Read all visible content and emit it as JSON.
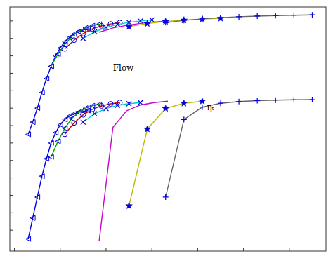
{
  "chart_data": {
    "type": "line",
    "xlim": [
      -0.01,
      0.68
    ],
    "ylim": [
      -0.62,
      0.78
    ],
    "xticks": [
      0.0,
      0.1,
      0.2,
      0.3,
      0.4,
      0.5,
      0.6
    ],
    "yticks": [
      -0.5,
      -0.4,
      -0.3,
      -0.2,
      -0.1,
      0.0,
      0.1,
      0.2,
      0.3,
      0.4,
      0.5,
      0.6,
      0.7
    ],
    "tick_labels": false,
    "grid": false,
    "annotations": [
      {
        "text": "Flow",
        "x": 0.215,
        "y": 0.415
      },
      {
        "text": "ηₜ",
        "x": 0.42,
        "y": 0.19
      }
    ],
    "series": [
      {
        "color": "#0000dd",
        "marker": "triangle-left",
        "x": [
          0.03,
          0.04,
          0.05,
          0.06,
          0.07,
          0.08,
          0.09,
          0.1,
          0.11,
          0.12,
          0.13,
          0.14,
          0.15,
          0.16
        ],
        "values": [
          0.05,
          0.12,
          0.2,
          0.29,
          0.37,
          0.44,
          0.5,
          0.545,
          0.58,
          0.605,
          0.625,
          0.638,
          0.648,
          0.655
        ]
      },
      {
        "color": "#00aa00",
        "marker": "triangle-left",
        "x": [
          0.08,
          0.095,
          0.11,
          0.125,
          0.14,
          0.155,
          0.17,
          0.185
        ],
        "values": [
          0.44,
          0.51,
          0.565,
          0.61,
          0.64,
          0.66,
          0.673,
          0.682
        ]
      },
      {
        "color": "#dd0000",
        "marker": "circle",
        "x": [
          0.11,
          0.13,
          0.15,
          0.17,
          0.19,
          0.21,
          0.23
        ],
        "values": [
          0.54,
          0.59,
          0.628,
          0.655,
          0.672,
          0.683,
          0.69
        ]
      },
      {
        "color": "#00cccc",
        "marker": "x",
        "x": [
          0.15,
          0.175,
          0.2,
          0.225,
          0.25,
          0.275,
          0.3
        ],
        "values": [
          0.6,
          0.638,
          0.663,
          0.68,
          0.692,
          0.7,
          0.706
        ]
      },
      {
        "color": "#cc00cc",
        "marker": "none",
        "x": [
          0.185,
          0.215,
          0.245,
          0.275,
          0.305,
          0.335
        ],
        "values": [
          0.635,
          0.66,
          0.675,
          0.686,
          0.694,
          0.7
        ]
      },
      {
        "color": "#bbbb00",
        "marker": "star",
        "x": [
          0.25,
          0.29,
          0.33,
          0.37,
          0.41,
          0.45
        ],
        "values": [
          0.668,
          0.685,
          0.697,
          0.705,
          0.711,
          0.715
        ]
      },
      {
        "color": "#666666",
        "marker": "plus",
        "x": [
          0.33,
          0.37,
          0.41,
          0.45,
          0.49,
          0.53,
          0.57,
          0.61,
          0.65
        ],
        "values": [
          0.69,
          0.703,
          0.712,
          0.719,
          0.724,
          0.728,
          0.731,
          0.733,
          0.735
        ]
      },
      {
        "color": "#0000dd",
        "marker": "triangle-left",
        "x": [
          0.03,
          0.04,
          0.05,
          0.06,
          0.07,
          0.08,
          0.09,
          0.1,
          0.11,
          0.12,
          0.13,
          0.14,
          0.15,
          0.16
        ],
        "values": [
          -0.55,
          -0.43,
          -0.31,
          -0.19,
          -0.09,
          0.0,
          0.06,
          0.105,
          0.135,
          0.155,
          0.168,
          0.176,
          0.182,
          0.186
        ]
      },
      {
        "color": "#00aa00",
        "marker": "triangle-left",
        "x": [
          0.08,
          0.095,
          0.11,
          0.125,
          0.14,
          0.155,
          0.17,
          0.185
        ],
        "values": [
          -0.08,
          0.01,
          0.085,
          0.14,
          0.177,
          0.2,
          0.214,
          0.222
        ]
      },
      {
        "color": "#dd0000",
        "marker": "circle",
        "x": [
          0.11,
          0.13,
          0.15,
          0.17,
          0.19,
          0.21,
          0.23
        ],
        "values": [
          0.05,
          0.115,
          0.162,
          0.193,
          0.213,
          0.225,
          0.232
        ]
      },
      {
        "color": "#00cccc",
        "marker": "x",
        "x": [
          0.15,
          0.175,
          0.2,
          0.225,
          0.25,
          0.275
        ],
        "values": [
          0.12,
          0.168,
          0.198,
          0.216,
          0.226,
          0.232
        ]
      },
      {
        "color": "#cc00cc",
        "marker": "none",
        "x": [
          0.185,
          0.215,
          0.245,
          0.275,
          0.305,
          0.335
        ],
        "values": [
          -0.56,
          0.09,
          0.185,
          0.218,
          0.232,
          0.24
        ]
      },
      {
        "color": "#bbbb00",
        "marker": "star",
        "x": [
          0.25,
          0.29,
          0.33,
          0.37,
          0.41
        ],
        "values": [
          -0.36,
          0.08,
          0.198,
          0.228,
          0.24
        ]
      },
      {
        "color": "#666666",
        "marker": "plus",
        "x": [
          0.33,
          0.37,
          0.41,
          0.45,
          0.49,
          0.53,
          0.57,
          0.61,
          0.65
        ],
        "values": [
          -0.31,
          0.135,
          0.206,
          0.228,
          0.238,
          0.243,
          0.246,
          0.248,
          0.249
        ]
      }
    ]
  }
}
